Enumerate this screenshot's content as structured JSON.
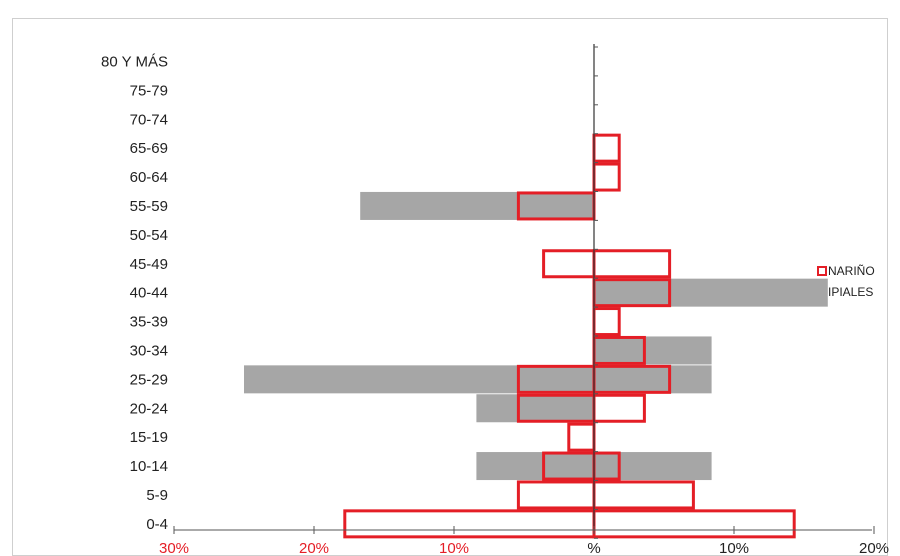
{
  "chart_data": {
    "type": "bar",
    "subtype": "population-pyramid",
    "title": "",
    "categories": [
      "80 Y MÁS",
      "75-79",
      "70-74",
      "65-69",
      "60-64",
      "55-59",
      "50-54",
      "45-49",
      "40-44",
      "35-39",
      "30-34",
      "25-29",
      "20-24",
      "15-19",
      "10-14",
      "5-9",
      "0-4"
    ],
    "series": [
      {
        "name": "IPIALES",
        "style": "filled",
        "left": [
          0,
          0,
          0,
          0,
          0,
          16.7,
          0,
          0,
          0,
          0,
          0,
          25.0,
          8.4,
          0,
          8.4,
          0,
          0
        ],
        "right": [
          0,
          0,
          0,
          0,
          0,
          0,
          0,
          0,
          16.7,
          0,
          8.4,
          8.4,
          0,
          0,
          8.4,
          0,
          0
        ]
      },
      {
        "name": "NARIÑO",
        "style": "outline",
        "left": [
          0,
          0,
          0,
          0,
          0,
          5.4,
          0,
          3.6,
          0,
          0,
          0,
          5.4,
          5.4,
          1.8,
          3.6,
          5.4,
          17.8
        ],
        "right": [
          0,
          0,
          0,
          1.8,
          1.8,
          0,
          0,
          5.4,
          5.4,
          1.8,
          3.6,
          5.4,
          3.6,
          0,
          1.8,
          7.1,
          14.3
        ]
      }
    ],
    "x_ticks_left": [
      "30%",
      "20%",
      "10%"
    ],
    "x_tick_center": "%",
    "x_ticks_right": [
      "10%",
      "20%"
    ],
    "xlim_left": 30,
    "xlim_right": 20,
    "legend": {
      "position": "right",
      "entries": [
        "NARIÑO",
        "IPIALES"
      ]
    },
    "colors": {
      "filled": "#a6a6a6",
      "outline": "#e41e26",
      "left_ticks": "#e41e26",
      "right_ticks": "#222222"
    }
  }
}
